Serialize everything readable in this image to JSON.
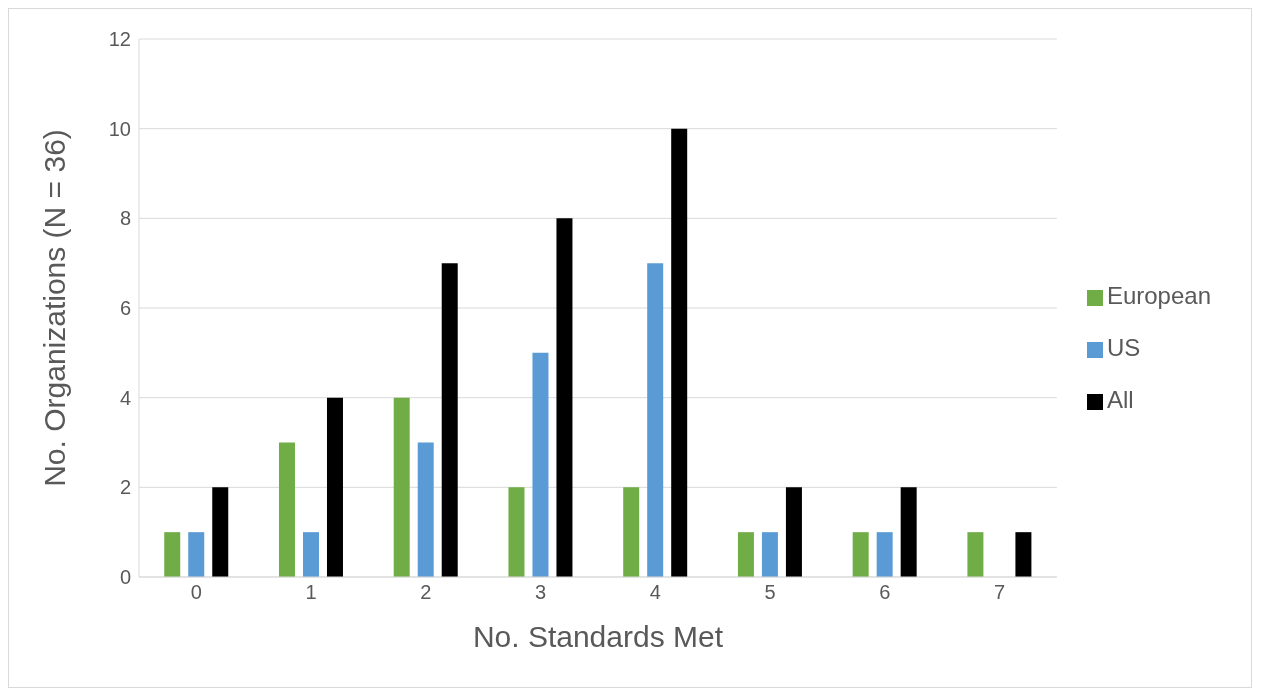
{
  "chart_data": {
    "type": "bar",
    "xlabel": "No. Standards Met",
    "ylabel": "No. Organizations (N = 36)",
    "categories": [
      "0",
      "1",
      "2",
      "3",
      "4",
      "5",
      "6",
      "7"
    ],
    "series": [
      {
        "name": "European",
        "color": "#70ad47",
        "values": [
          1,
          3,
          4,
          2,
          2,
          1,
          1,
          1
        ]
      },
      {
        "name": "US",
        "color": "#5b9bd5",
        "values": [
          1,
          1,
          3,
          5,
          7,
          1,
          1,
          0
        ]
      },
      {
        "name": "All",
        "color": "#000000",
        "values": [
          2,
          4,
          7,
          8,
          10,
          2,
          2,
          1
        ]
      }
    ],
    "ylim": [
      0,
      12
    ],
    "yticks": [
      0,
      2,
      4,
      6,
      8,
      10,
      12
    ],
    "grid": "y",
    "legend": "right"
  }
}
